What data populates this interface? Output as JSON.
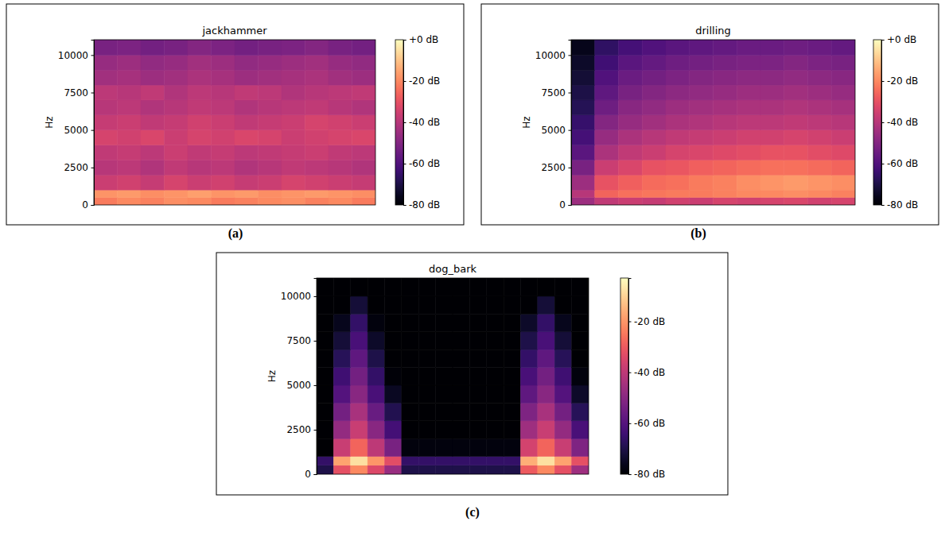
{
  "chart_data": [
    {
      "type": "heatmap",
      "title": "jackhammer",
      "caption": "(a)",
      "ylabel": "Hz",
      "color": "magma",
      "tick_labels": "y",
      "xlim": [
        0,
        12
      ],
      "ylim": [
        0,
        11025
      ],
      "yticks": [
        0,
        2500,
        5000,
        7500,
        10000
      ],
      "x_edges": [
        0,
        1,
        2,
        3,
        4,
        5,
        6,
        7,
        8,
        9,
        10,
        11,
        12
      ],
      "y_edges": [
        0,
        500,
        1000,
        2000,
        3000,
        4000,
        5000,
        6000,
        7000,
        8000,
        9000,
        10000,
        11025
      ],
      "values": [
        [
          -22,
          -20,
          -21,
          -19,
          -20,
          -22,
          -21,
          -20,
          -19,
          -21,
          -20,
          -22
        ],
        [
          -18,
          -17,
          -19,
          -18,
          -16,
          -18,
          -17,
          -19,
          -18,
          -17,
          -18,
          -19
        ],
        [
          -36,
          -35,
          -37,
          -34,
          -36,
          -35,
          -37,
          -36,
          -34,
          -35,
          -36,
          -37
        ],
        [
          -40,
          -39,
          -41,
          -38,
          -40,
          -39,
          -41,
          -40,
          -38,
          -39,
          -40,
          -41
        ],
        [
          -38,
          -37,
          -39,
          -36,
          -38,
          -37,
          -39,
          -38,
          -37,
          -36,
          -38,
          -39
        ],
        [
          -34,
          -35,
          -33,
          -36,
          -34,
          -35,
          -33,
          -34,
          -36,
          -35,
          -34,
          -33
        ],
        [
          -37,
          -36,
          -38,
          -37,
          -35,
          -36,
          -38,
          -37,
          -36,
          -34,
          -35,
          -36
        ],
        [
          -40,
          -39,
          -41,
          -40,
          -38,
          -39,
          -41,
          -40,
          -39,
          -38,
          -40,
          -41
        ],
        [
          -39,
          -40,
          -38,
          -41,
          -39,
          -40,
          -38,
          -39,
          -41,
          -40,
          -39,
          -38
        ],
        [
          -44,
          -43,
          -45,
          -44,
          -42,
          -43,
          -45,
          -44,
          -43,
          -42,
          -44,
          -45
        ],
        [
          -46,
          -45,
          -47,
          -46,
          -44,
          -45,
          -47,
          -46,
          -45,
          -44,
          -46,
          -47
        ],
        [
          -52,
          -51,
          -53,
          -52,
          -50,
          -51,
          -53,
          -52,
          -51,
          -50,
          -52,
          -53
        ]
      ],
      "colorbar": {
        "range": [
          -80,
          0
        ],
        "ticks": [
          {
            "value": 0,
            "label": "+0 dB"
          },
          {
            "value": -20,
            "label": "-20 dB"
          },
          {
            "value": -40,
            "label": "-40 dB"
          },
          {
            "value": -60,
            "label": "-60 dB"
          },
          {
            "value": -80,
            "label": "-80 dB"
          }
        ]
      }
    },
    {
      "type": "heatmap",
      "title": "drilling",
      "caption": "(b)",
      "ylabel": "Hz",
      "color": "magma",
      "tick_labels": "y",
      "xlim": [
        0,
        12
      ],
      "ylim": [
        0,
        11025
      ],
      "yticks": [
        0,
        2500,
        5000,
        7500,
        10000
      ],
      "x_edges": [
        0,
        1,
        2,
        3,
        4,
        5,
        6,
        7,
        8,
        9,
        10,
        11,
        12
      ],
      "y_edges": [
        0,
        500,
        1000,
        2000,
        3000,
        4000,
        5000,
        6000,
        7000,
        8000,
        9000,
        10000,
        11025
      ],
      "values": [
        [
          -45,
          -38,
          -36,
          -37,
          -35,
          -36,
          -34,
          -35,
          -34,
          -33,
          -35,
          -34
        ],
        [
          -40,
          -26,
          -24,
          -23,
          -22,
          -22,
          -21,
          -20,
          -20,
          -19,
          -20,
          -21
        ],
        [
          -45,
          -30,
          -27,
          -25,
          -24,
          -22,
          -21,
          -19,
          -18,
          -17,
          -18,
          -19
        ],
        [
          -52,
          -36,
          -33,
          -30,
          -29,
          -27,
          -26,
          -25,
          -24,
          -24,
          -25,
          -26
        ],
        [
          -58,
          -42,
          -38,
          -36,
          -34,
          -33,
          -32,
          -31,
          -30,
          -30,
          -31,
          -32
        ],
        [
          -62,
          -46,
          -42,
          -40,
          -38,
          -37,
          -36,
          -35,
          -35,
          -34,
          -35,
          -36
        ],
        [
          -65,
          -50,
          -46,
          -44,
          -42,
          -41,
          -40,
          -39,
          -39,
          -38,
          -39,
          -40
        ],
        [
          -68,
          -54,
          -49,
          -47,
          -45,
          -44,
          -43,
          -42,
          -42,
          -41,
          -42,
          -43
        ],
        [
          -70,
          -57,
          -52,
          -50,
          -48,
          -47,
          -46,
          -45,
          -45,
          -44,
          -45,
          -46
        ],
        [
          -72,
          -60,
          -55,
          -53,
          -51,
          -50,
          -49,
          -48,
          -48,
          -47,
          -48,
          -49
        ],
        [
          -74,
          -63,
          -58,
          -56,
          -54,
          -53,
          -52,
          -51,
          -51,
          -50,
          -51,
          -52
        ],
        [
          -76,
          -66,
          -62,
          -60,
          -58,
          -57,
          -56,
          -55,
          -55,
          -54,
          -55,
          -56
        ]
      ],
      "colorbar": {
        "range": [
          -80,
          0
        ],
        "ticks": [
          {
            "value": 0,
            "label": "+0 dB"
          },
          {
            "value": -20,
            "label": "-20 dB"
          },
          {
            "value": -40,
            "label": "-40 dB"
          },
          {
            "value": -60,
            "label": "-60 dB"
          },
          {
            "value": -80,
            "label": "-80 dB"
          }
        ]
      }
    },
    {
      "type": "heatmap",
      "title": "dog_bark",
      "caption": "(c)",
      "ylabel": "Hz",
      "color": "magma",
      "tick_labels": "y",
      "xlim": [
        0,
        16
      ],
      "ylim": [
        0,
        11025
      ],
      "yticks": [
        0,
        2500,
        5000,
        7500,
        10000
      ],
      "x_edges": [
        0,
        1,
        2,
        3,
        4,
        5,
        6,
        7,
        8,
        9,
        10,
        11,
        12,
        13,
        14,
        15,
        16
      ],
      "y_edges": [
        0,
        500,
        1000,
        2000,
        3000,
        4000,
        5000,
        6000,
        7000,
        8000,
        9000,
        10000,
        11025
      ],
      "values": [
        [
          -70,
          -32,
          -22,
          -34,
          -47,
          -70,
          -70,
          -70,
          -70,
          -70,
          -70,
          -70,
          -30,
          -22,
          -32,
          -46
        ],
        [
          -66,
          -18,
          -8,
          -20,
          -33,
          -66,
          -66,
          -66,
          -66,
          -66,
          -66,
          -66,
          -16,
          -8,
          -18,
          -32
        ],
        [
          -80,
          -38,
          -28,
          -40,
          -53,
          -78,
          -78,
          -78,
          -78,
          -78,
          -78,
          -78,
          -36,
          -28,
          -38,
          -52
        ],
        [
          -80,
          -48,
          -38,
          -50,
          -63,
          -80,
          -80,
          -80,
          -80,
          -80,
          -80,
          -80,
          -46,
          -38,
          -48,
          -62
        ],
        [
          -80,
          -54,
          -44,
          -56,
          -69,
          -80,
          -80,
          -80,
          -80,
          -80,
          -80,
          -80,
          -52,
          -44,
          -54,
          -68
        ],
        [
          -80,
          -60,
          -50,
          -62,
          -75,
          -80,
          -80,
          -80,
          -80,
          -80,
          -80,
          -80,
          -58,
          -50,
          -60,
          -74
        ],
        [
          -80,
          -64,
          -54,
          -66,
          -79,
          -80,
          -80,
          -80,
          -80,
          -80,
          -80,
          -80,
          -62,
          -54,
          -64,
          -78
        ],
        [
          -80,
          -68,
          -58,
          -70,
          -80,
          -80,
          -80,
          -80,
          -80,
          -80,
          -80,
          -80,
          -66,
          -58,
          -68,
          -80
        ],
        [
          -80,
          -72,
          -62,
          -74,
          -80,
          -80,
          -80,
          -80,
          -80,
          -80,
          -80,
          -80,
          -70,
          -62,
          -72,
          -80
        ],
        [
          -80,
          -76,
          -66,
          -78,
          -80,
          -80,
          -80,
          -80,
          -80,
          -80,
          -80,
          -80,
          -74,
          -66,
          -76,
          -80
        ],
        [
          -80,
          -80,
          -72,
          -80,
          -80,
          -80,
          -80,
          -80,
          -80,
          -80,
          -80,
          -80,
          -80,
          -72,
          -80,
          -80
        ],
        [
          -80,
          -80,
          -80,
          -80,
          -80,
          -80,
          -80,
          -80,
          -80,
          -80,
          -80,
          -80,
          -80,
          -80,
          -80,
          -80
        ]
      ],
      "colorbar": {
        "range": [
          -80,
          -3
        ],
        "ticks": [
          {
            "value": -20,
            "label": "-20 dB"
          },
          {
            "value": -40,
            "label": "-40 dB"
          },
          {
            "value": -60,
            "label": "-60 dB"
          },
          {
            "value": -80,
            "label": "-80 dB"
          }
        ]
      }
    }
  ]
}
